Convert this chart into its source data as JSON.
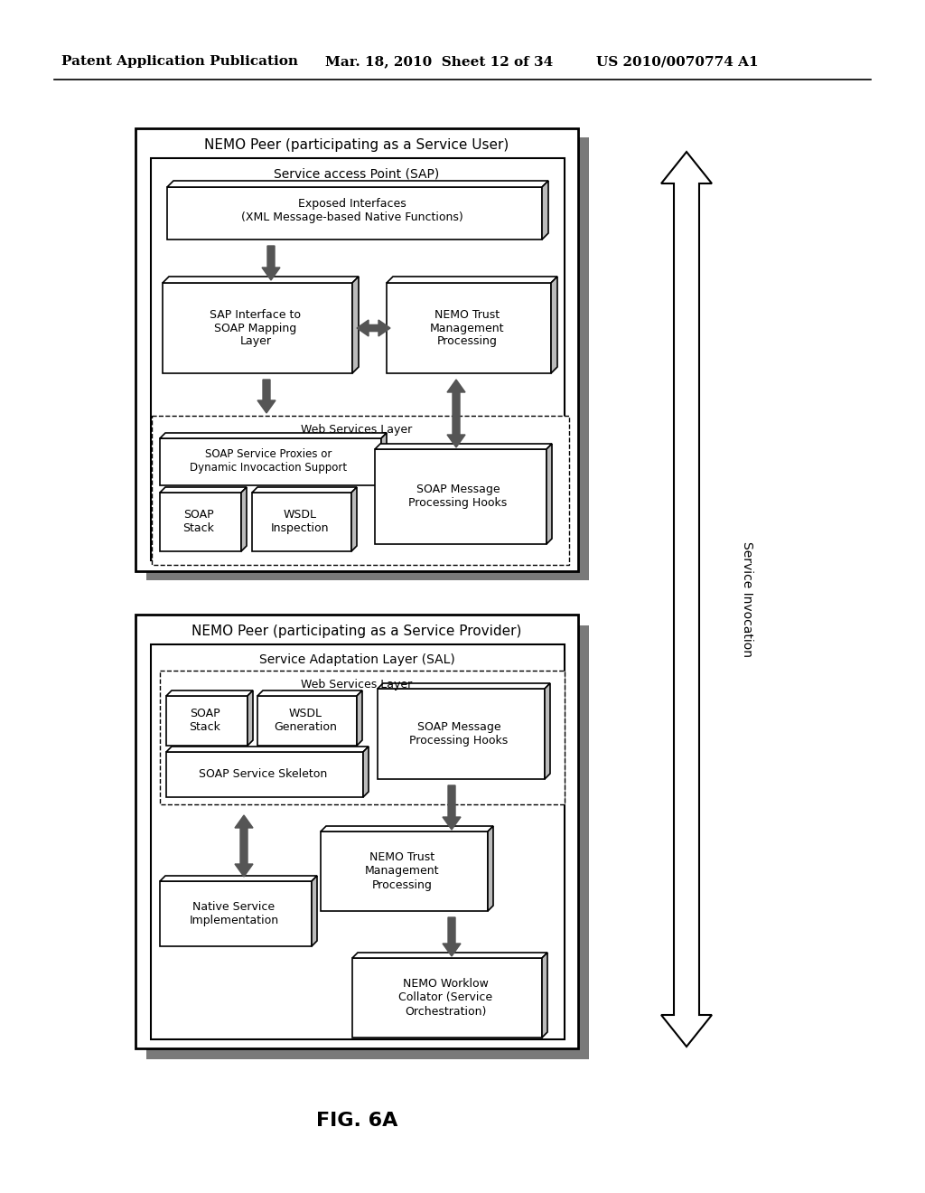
{
  "bg_color": "#ffffff",
  "header_text": "Patent Application Publication",
  "header_date": "Mar. 18, 2010  Sheet 12 of 34",
  "header_patent": "US 2010/0070774 A1",
  "fig_label": "FIG. 6A",
  "top_box": {
    "title": "NEMO Peer (participating as a Service User)",
    "inner_title": "Service access Point (SAP)",
    "exposed": "Exposed Interfaces\n(XML Message-based Native Functions)",
    "sap_mapping": "SAP Interface to\nSOAP Mapping\nLayer",
    "nemo_trust": "NEMO Trust\nManagement\nProcessing",
    "web_layer_title": "Web Services Layer",
    "soap_proxies": "SOAP Service Proxies or\nDynamic Invocaction Support",
    "soap_stack": "SOAP\nStack",
    "wsdl": "WSDL\nInspection",
    "soap_hooks": "SOAP Message\nProcessing Hooks"
  },
  "bottom_box": {
    "title": "NEMO Peer (participating as a Service Provider)",
    "inner_title": "Service Adaptation Layer (SAL)",
    "web_layer_title": "Web Services Layer",
    "soap_stack": "SOAP\nStack",
    "wsdl_gen": "WSDL\nGeneration",
    "soap_skeleton": "SOAP Service Skeleton",
    "soap_hooks": "SOAP Message\nProcessing Hooks",
    "nemo_trust": "NEMO Trust\nManagement\nProcessing",
    "native_service": "Native Service\nImplementation",
    "nemo_workflow": "NEMO Worklow\nCollator (Service\nOrchestration)"
  },
  "side_arrow_label": "Service Invocation"
}
